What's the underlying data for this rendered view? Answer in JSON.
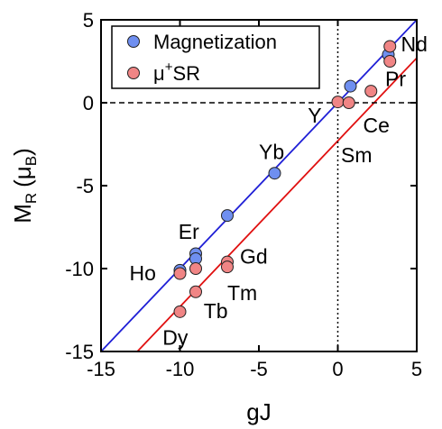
{
  "chart_data": {
    "type": "scatter",
    "xlabel": "gJ",
    "ylabel": {
      "base": "M",
      "sub": "R",
      "unit_open": "(μ",
      "unit_sub": "B",
      "unit_close": ")"
    },
    "xlim": [
      -15,
      5
    ],
    "ylim": [
      -15,
      5
    ],
    "xticks": [
      -15,
      -10,
      -5,
      0,
      5
    ],
    "yticks": [
      -15,
      -10,
      -5,
      0,
      5
    ],
    "x_tick_labels": [
      "-15",
      "-10",
      "-5",
      "0",
      "5"
    ],
    "y_tick_labels": [
      "-15",
      "-10",
      "-5",
      "0",
      "5"
    ],
    "grid": false,
    "legend_position": "top-left",
    "reference_lines": [
      {
        "orientation": "vertical",
        "value": 0,
        "style": "dotted"
      },
      {
        "orientation": "horizontal",
        "value": 0,
        "style": "dashed"
      }
    ],
    "series": [
      {
        "name": "Magnetization",
        "color": "#6f8ff0",
        "fit_color": "#1f1fd6",
        "fit": {
          "slope": 1.0,
          "intercept": 0.0
        },
        "points": [
          {
            "x": -10.0,
            "y": -10.1
          },
          {
            "x": -9.0,
            "y": -9.1
          },
          {
            "x": -9.0,
            "y": -9.4
          },
          {
            "x": -7.0,
            "y": -6.8
          },
          {
            "x": -4.0,
            "y": -4.25
          },
          {
            "x": 0.8,
            "y": 1.0
          },
          {
            "x": 3.2,
            "y": 2.9
          }
        ]
      },
      {
        "name": "μ",
        "name_sup": "+",
        "name_suffix": "SR",
        "color": "#f08585",
        "fit_color": "#e01010",
        "fit": {
          "slope": 1.0,
          "intercept": -2.3
        },
        "points": [
          {
            "x": -10.0,
            "y": -10.3
          },
          {
            "x": -10.0,
            "y": -12.6
          },
          {
            "x": -9.0,
            "y": -10.0
          },
          {
            "x": -9.0,
            "y": -11.4
          },
          {
            "x": -7.0,
            "y": -9.6
          },
          {
            "x": -7.0,
            "y": -9.9
          },
          {
            "x": 0.0,
            "y": 0.05
          },
          {
            "x": 0.7,
            "y": 0.0
          },
          {
            "x": 2.1,
            "y": 0.7
          },
          {
            "x": 3.3,
            "y": 2.5
          },
          {
            "x": 3.3,
            "y": 3.4
          }
        ]
      }
    ],
    "element_labels": [
      {
        "text": "Nd",
        "x": 4.0,
        "y": 3.1,
        "anchor": "start"
      },
      {
        "text": "Pr",
        "x": 3.0,
        "y": 1.0,
        "anchor": "start"
      },
      {
        "text": "Ce",
        "x": 1.6,
        "y": -1.8,
        "anchor": "start"
      },
      {
        "text": "Sm",
        "x": 0.2,
        "y": -3.6,
        "anchor": "start"
      },
      {
        "text": "Y",
        "x": -1.9,
        "y": -1.2,
        "anchor": "start"
      },
      {
        "text": "Yb",
        "x": -5.0,
        "y": -3.4,
        "anchor": "start"
      },
      {
        "text": "Er",
        "x": -10.1,
        "y": -8.2,
        "anchor": "start"
      },
      {
        "text": "Ho",
        "x": -13.2,
        "y": -10.7,
        "anchor": "start"
      },
      {
        "text": "Gd",
        "x": -6.2,
        "y": -9.7,
        "anchor": "start"
      },
      {
        "text": "Tm",
        "x": -7.0,
        "y": -11.9,
        "anchor": "start"
      },
      {
        "text": "Tb",
        "x": -8.5,
        "y": -13.0,
        "anchor": "start"
      },
      {
        "text": "Dy",
        "x": -11.1,
        "y": -14.6,
        "anchor": "start"
      }
    ]
  }
}
